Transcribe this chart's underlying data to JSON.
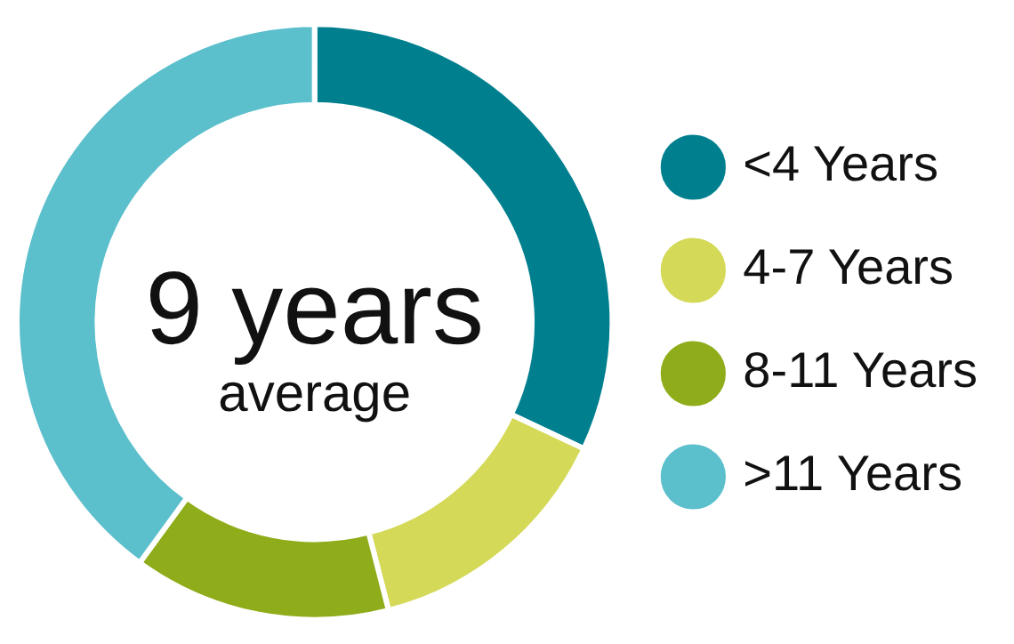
{
  "chart_data": {
    "type": "donut",
    "categories": [
      "<4 Years",
      "4-7 Years",
      "8-11 Years",
      ">11 Years"
    ],
    "values": [
      32,
      14,
      14,
      40
    ],
    "colors": [
      "#007f8e",
      "#d4d957",
      "#8fac1a",
      "#5bbfcc"
    ],
    "annotations": [
      "9 years",
      "average"
    ],
    "legend": "right"
  }
}
